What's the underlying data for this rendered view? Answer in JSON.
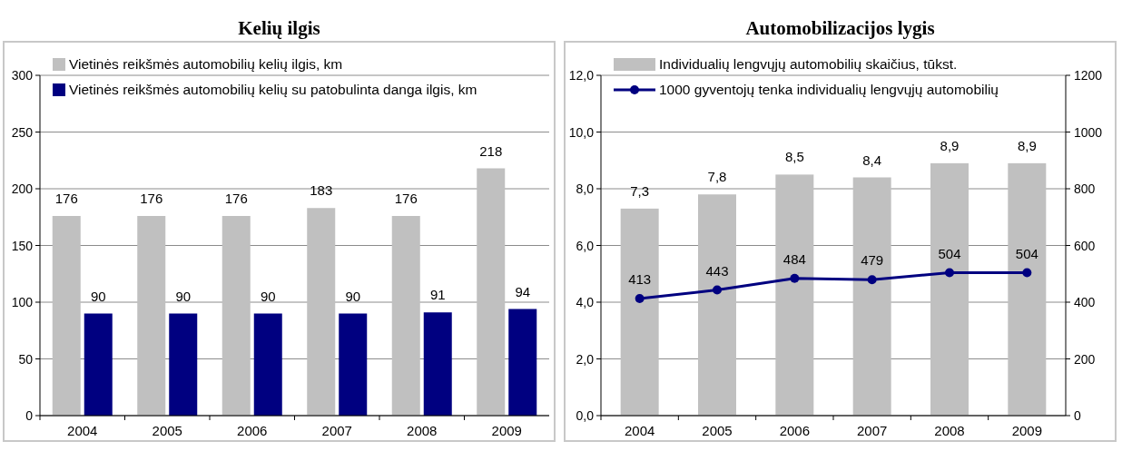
{
  "chart_data": [
    {
      "type": "bar",
      "title": "Kelių ilgis",
      "categories": [
        "2004",
        "2005",
        "2006",
        "2007",
        "2008",
        "2009"
      ],
      "series": [
        {
          "name": "Vietinės reikšmės automobilių kelių ilgis, km",
          "color": "#c0c0c0",
          "values": [
            176,
            176,
            176,
            183,
            176,
            218
          ]
        },
        {
          "name": "Vietinės reikšmės automobilių kelių su patobulinta danga ilgis, km",
          "color": "#000080",
          "values": [
            90,
            90,
            90,
            90,
            91,
            94
          ]
        }
      ],
      "ylim": [
        0,
        300
      ],
      "yticks": [
        0,
        50,
        100,
        150,
        200,
        250,
        300
      ],
      "grid": "y",
      "legend": "top left",
      "data_labels": true
    },
    {
      "type": "bar",
      "title": "Automobilizacijos lygis",
      "categories": [
        "2004",
        "2005",
        "2006",
        "2007",
        "2008",
        "2009"
      ],
      "series": [
        {
          "name": "Individualių lengvųjų automobilių skaičius, tūkst.",
          "color": "#c0c0c0",
          "values": [
            7.3,
            7.8,
            8.5,
            8.4,
            8.9,
            8.9
          ],
          "value_labels": [
            "7,3",
            "7,8",
            "8,5",
            "8,4",
            "8,9",
            "8,9"
          ]
        },
        {
          "name": "1000 gyventojų tenka individualių lengvųjų automobilių",
          "type": "line",
          "axis": "y2",
          "color": "#000080",
          "marker": "circle",
          "line_style": "solid",
          "values": [
            413,
            443,
            484,
            479,
            504,
            504
          ],
          "value_labels": [
            "413",
            "443",
            "484",
            "479",
            "504",
            "504"
          ]
        }
      ],
      "ylim": [
        0,
        12
      ],
      "yticks": [
        {
          "value": 0,
          "label": "0,0"
        },
        {
          "value": 2,
          "label": "2,0"
        },
        {
          "value": 4,
          "label": "4,0"
        },
        {
          "value": 6,
          "label": "6,0"
        },
        {
          "value": 8,
          "label": "8,0"
        },
        {
          "value": 10,
          "label": "10,0"
        },
        {
          "value": 12,
          "label": "12,0"
        }
      ],
      "y2lim": [
        0,
        1200
      ],
      "y2ticks": [
        0,
        200,
        400,
        600,
        800,
        1000,
        1200
      ],
      "grid": "y",
      "legend": "top left"
    }
  ]
}
